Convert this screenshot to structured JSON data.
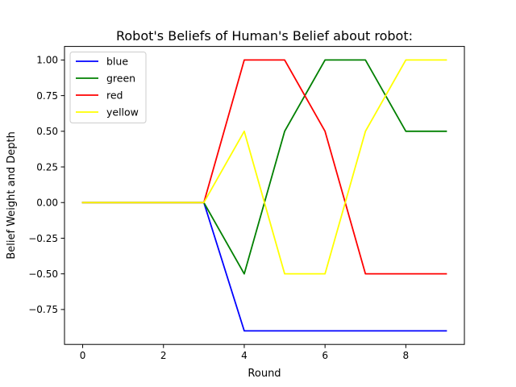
{
  "chart_data": {
    "type": "line",
    "title": "Robot's Beliefs of Human's Belief about robot:",
    "xlabel": "Round",
    "ylabel": "Belief Weight and Depth",
    "xlim": [
      -0.45,
      9.45
    ],
    "ylim": [
      -0.995,
      1.095
    ],
    "x_ticks": [
      0,
      2,
      4,
      6,
      8
    ],
    "x_tick_labels": [
      "0",
      "2",
      "4",
      "6",
      "8"
    ],
    "y_ticks": [
      -0.75,
      -0.5,
      -0.25,
      0.0,
      0.25,
      0.5,
      0.75,
      1.0
    ],
    "y_tick_labels": [
      "−0.75",
      "−0.50",
      "−0.25",
      "0.00",
      "0.25",
      "0.50",
      "0.75",
      "1.00"
    ],
    "grid": false,
    "legend_position": "upper-left",
    "x": [
      0,
      1,
      2,
      3,
      4,
      5,
      6,
      7,
      8,
      9
    ],
    "series": [
      {
        "name": "blue",
        "color": "#0000ff",
        "values": [
          0,
          0,
          0,
          0,
          -0.9,
          -0.9,
          -0.9,
          -0.9,
          -0.9,
          -0.9
        ]
      },
      {
        "name": "green",
        "color": "#008000",
        "values": [
          0,
          0,
          0,
          0,
          -0.5,
          0.5,
          1.0,
          1.0,
          0.5,
          0.5
        ]
      },
      {
        "name": "red",
        "color": "#ff0000",
        "values": [
          0,
          0,
          0,
          0,
          1.0,
          1.0,
          0.5,
          -0.5,
          -0.5,
          -0.5
        ]
      },
      {
        "name": "yellow",
        "color": "#ffff00",
        "values": [
          0,
          0,
          0,
          0,
          0.5,
          -0.5,
          -0.5,
          0.5,
          1.0,
          1.0
        ]
      }
    ]
  }
}
